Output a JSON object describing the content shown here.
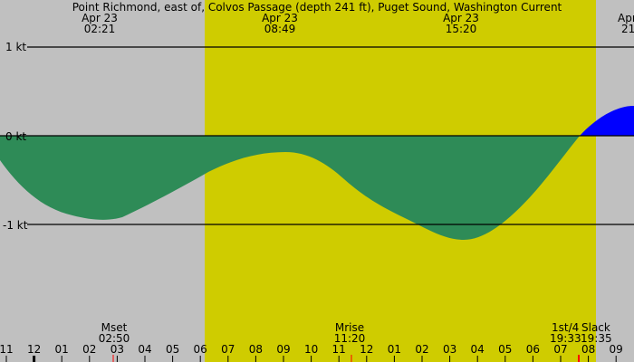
{
  "chart_data": {
    "type": "area",
    "title": "Point Richmond, east of, Colvos Passage (depth 241 ft), Puget Sound, Washington Current",
    "xlabel": "",
    "ylabel": "kt",
    "ylim": [
      -2.0,
      1.5
    ],
    "y_ticks": [
      {
        "label": "1 kt",
        "value": 1
      },
      {
        "label": "0 kt",
        "value": 0
      },
      {
        "label": "-1 kt",
        "value": -1
      }
    ],
    "x_tick_labels": [
      "11",
      "12",
      "01",
      "02",
      "03",
      "04",
      "05",
      "06",
      "07",
      "08",
      "09",
      "10",
      "11",
      "12",
      "01",
      "02",
      "03",
      "04",
      "05",
      "06",
      "07",
      "08",
      "09"
    ],
    "top_events": [
      {
        "date": "Apr 23",
        "time": "02:21",
        "type": "max ebb",
        "value": -0.95
      },
      {
        "date": "Apr 23",
        "time": "08:49",
        "type": "min ebb",
        "value": -0.18
      },
      {
        "date": "Apr 23",
        "time": "15:20",
        "type": "max ebb",
        "value": -1.17
      },
      {
        "date": "Apr",
        "time": "21",
        "type": "max flood (partial)",
        "value": 0.34
      }
    ],
    "bottom_events": [
      {
        "label": "Mset",
        "time": "02:50"
      },
      {
        "label": "Mrise",
        "time": "11:20"
      },
      {
        "label": "1st/4",
        "time": "19:33"
      },
      {
        "label": "Slack",
        "time": "19:35"
      }
    ],
    "daylight": {
      "start_hour": 6.1,
      "end_hour": 20.1
    },
    "series": [
      {
        "name": "Current (kt)",
        "x_hours": [
          23.0,
          0.0,
          1.0,
          2.0,
          2.35,
          3.0,
          4.0,
          5.0,
          6.0,
          7.0,
          8.0,
          8.8,
          9.5,
          10.5,
          11.5,
          12.5,
          13.5,
          14.5,
          15.33,
          16.0,
          17.0,
          18.0,
          19.0,
          19.58,
          20.5,
          21.5,
          21.8
        ],
        "values": [
          -0.28,
          -0.62,
          -0.85,
          -0.94,
          -0.95,
          -0.9,
          -0.72,
          -0.53,
          -0.35,
          -0.2,
          -0.19,
          -0.18,
          -0.22,
          -0.45,
          -0.76,
          -0.92,
          -1.05,
          -1.15,
          -1.17,
          -1.1,
          -0.85,
          -0.5,
          -0.12,
          0.0,
          0.2,
          0.32,
          0.34
        ]
      }
    ],
    "colors": {
      "background": "#c0c0c0",
      "daylight": "#cfcc00",
      "ebb": "#2e8b57",
      "flood": "#0000ff",
      "moon_marker": "#ff0000",
      "axis": "#000000"
    }
  }
}
